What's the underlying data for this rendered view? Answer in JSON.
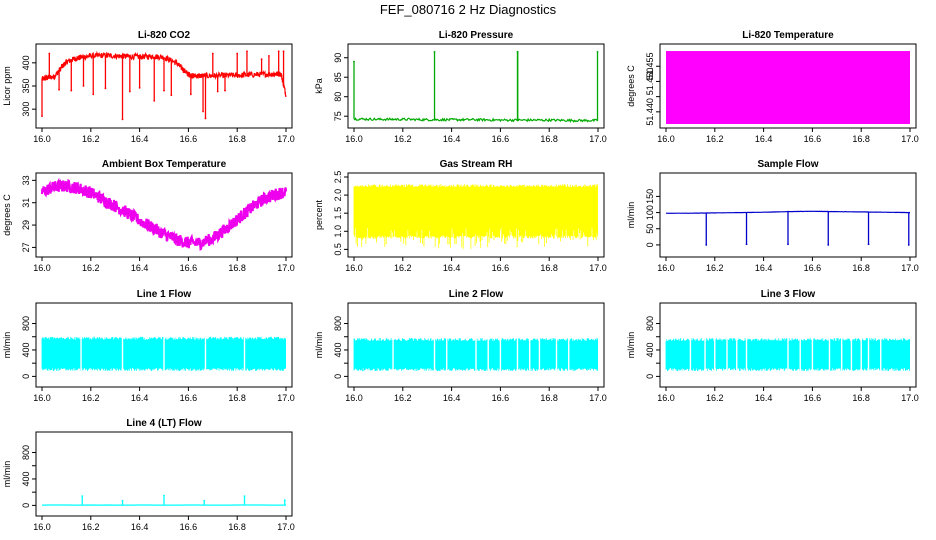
{
  "figure": {
    "title": "FEF_080716  2 Hz Diagnostics"
  },
  "chart_data": [
    {
      "type": "line",
      "title": "Li-820 CO2",
      "ylabel": "Licor ppm",
      "color": "#ff0000",
      "xlim": [
        16.0,
        17.0
      ],
      "ylim": [
        268,
        432
      ],
      "xticks": [
        16.0,
        16.2,
        16.4,
        16.6,
        16.8,
        17.0
      ],
      "xtick_labels": [
        "16.0",
        "16.2",
        "16.4",
        "16.6",
        "16.8",
        "17.0"
      ],
      "yticks": [
        300,
        350,
        400
      ],
      "ytick_labels": [
        "300",
        "350",
        "400"
      ],
      "series": [
        {
          "x": [
            16.0,
            16.02,
            16.05,
            16.08,
            16.1,
            16.13,
            16.16,
            16.2,
            16.25,
            16.3,
            16.35,
            16.4,
            16.45,
            16.5,
            16.55,
            16.58,
            16.6,
            16.62,
            16.65,
            16.7,
            16.75,
            16.8,
            16.85,
            16.9,
            16.95,
            16.98,
            17.0
          ],
          "y": [
            365,
            368,
            370,
            390,
            402,
            408,
            412,
            415,
            416,
            415,
            414,
            413,
            414,
            412,
            400,
            385,
            375,
            372,
            372,
            372,
            373,
            373,
            374,
            375,
            376,
            376,
            330
          ]
        }
      ],
      "spikes": [
        {
          "x": 16.0,
          "y": 285
        },
        {
          "x": 16.03,
          "y": 420
        },
        {
          "x": 16.07,
          "y": 342
        },
        {
          "x": 16.12,
          "y": 340
        },
        {
          "x": 16.17,
          "y": 350
        },
        {
          "x": 16.21,
          "y": 332
        },
        {
          "x": 16.26,
          "y": 345
        },
        {
          "x": 16.33,
          "y": 278
        },
        {
          "x": 16.36,
          "y": 338
        },
        {
          "x": 16.4,
          "y": 346
        },
        {
          "x": 16.46,
          "y": 318
        },
        {
          "x": 16.5,
          "y": 340
        },
        {
          "x": 16.53,
          "y": 330
        },
        {
          "x": 16.61,
          "y": 332
        },
        {
          "x": 16.66,
          "y": 295
        },
        {
          "x": 16.67,
          "y": 280
        },
        {
          "x": 16.7,
          "y": 420
        },
        {
          "x": 16.72,
          "y": 338
        },
        {
          "x": 16.75,
          "y": 340
        },
        {
          "x": 16.8,
          "y": 420
        },
        {
          "x": 16.84,
          "y": 425
        },
        {
          "x": 16.9,
          "y": 408
        },
        {
          "x": 16.93,
          "y": 415
        },
        {
          "x": 16.97,
          "y": 425
        },
        {
          "x": 16.99,
          "y": 425
        }
      ]
    },
    {
      "type": "line",
      "title": "Li-820 Pressure",
      "ylabel": "kPa",
      "color": "#00aa00",
      "xlim": [
        16.0,
        17.0
      ],
      "ylim": [
        73,
        92.5
      ],
      "xticks": [
        16.0,
        16.2,
        16.4,
        16.6,
        16.8,
        17.0
      ],
      "xtick_labels": [
        "16.0",
        "16.2",
        "16.4",
        "16.6",
        "16.8",
        "17.0"
      ],
      "yticks": [
        75,
        80,
        85,
        90
      ],
      "ytick_labels": [
        "75",
        "80",
        "85",
        "90"
      ],
      "series": [
        {
          "x": [
            16.0,
            16.1,
            16.2,
            16.3,
            16.4,
            16.5,
            16.6,
            16.7,
            16.8,
            16.9,
            17.0
          ],
          "y": [
            74.3,
            74.2,
            74.2,
            74.1,
            74.1,
            74.1,
            74.0,
            74.0,
            74.0,
            73.9,
            73.9
          ]
        }
      ],
      "spikes": [
        {
          "x": 16.0,
          "y": 89
        },
        {
          "x": 16.33,
          "y": 91.5
        },
        {
          "x": 16.67,
          "y": 91.5
        },
        {
          "x": 16.671,
          "y": 91.5
        },
        {
          "x": 16.998,
          "y": 91.5
        }
      ]
    },
    {
      "type": "area",
      "title": "Li-820 Temperature",
      "ylabel": "degrees C",
      "color": "#ff00ff",
      "xlim": [
        16.0,
        17.0
      ],
      "ylim": [
        51.436,
        51.461
      ],
      "xticks": [
        16.0,
        16.2,
        16.4,
        16.6,
        16.8,
        17.0
      ],
      "xtick_labels": [
        "16.0",
        "16.2",
        "16.4",
        "16.6",
        "16.8",
        "17.0"
      ],
      "yticks": [
        51.44,
        51.445,
        51.45,
        51.455
      ],
      "ytick_labels": [
        "51.440",
        "",
        "51.450",
        "51.455"
      ],
      "band": {
        "x": [
          16.0,
          17.0
        ],
        "ymin": 51.436,
        "ymax": 51.46
      }
    },
    {
      "type": "line",
      "title": "Ambient Box Temperature",
      "ylabel": "degrees C",
      "color": "#ee00ee",
      "xlim": [
        16.0,
        17.0
      ],
      "ylim": [
        26.5,
        33.3
      ],
      "xticks": [
        16.0,
        16.2,
        16.4,
        16.6,
        16.8,
        17.0
      ],
      "xtick_labels": [
        "16.0",
        "16.2",
        "16.4",
        "16.6",
        "16.8",
        "17.0"
      ],
      "yticks": [
        27,
        29,
        31,
        33
      ],
      "ytick_labels": [
        "27",
        "29",
        "31",
        "33"
      ],
      "noise": 0.55,
      "series": [
        {
          "x": [
            16.0,
            16.05,
            16.1,
            16.15,
            16.2,
            16.25,
            16.3,
            16.35,
            16.4,
            16.45,
            16.5,
            16.55,
            16.6,
            16.65,
            16.7,
            16.75,
            16.8,
            16.85,
            16.9,
            16.95,
            17.0
          ],
          "y": [
            32.0,
            32.4,
            32.5,
            32.3,
            31.9,
            31.3,
            30.7,
            30.1,
            29.4,
            28.8,
            28.2,
            27.7,
            27.4,
            27.4,
            27.8,
            28.6,
            29.5,
            30.4,
            31.2,
            31.7,
            32.0
          ]
        }
      ]
    },
    {
      "type": "line",
      "title": "Gas Stream RH",
      "ylabel": "percent",
      "color": "#ffff00",
      "xlim": [
        16.0,
        17.0
      ],
      "ylim": [
        0.4,
        2.5
      ],
      "xticks": [
        16.0,
        16.2,
        16.4,
        16.6,
        16.8,
        17.0
      ],
      "xtick_labels": [
        "16.0",
        "16.2",
        "16.4",
        "16.6",
        "16.8",
        "17.0"
      ],
      "yticks": [
        0.5,
        1.0,
        1.5,
        2.0,
        2.5
      ],
      "ytick_labels": [
        "0.5",
        "1.0",
        "1.5",
        "2.0",
        "2.5"
      ],
      "band": {
        "x": [
          16.0,
          17.0
        ],
        "ymin": 0.8,
        "ymax": 2.3
      },
      "spike_range": [
        0.5,
        2.4
      ]
    },
    {
      "type": "line",
      "title": "Sample Flow",
      "ylabel": "ml/min",
      "color": "#0000cc",
      "xlim": [
        16.0,
        17.0
      ],
      "ylim": [
        -25,
        210
      ],
      "xticks": [
        16.0,
        16.2,
        16.4,
        16.6,
        16.8,
        17.0
      ],
      "xtick_labels": [
        "16.0",
        "16.2",
        "16.4",
        "16.6",
        "16.8",
        "17.0"
      ],
      "yticks": [
        0,
        50,
        100,
        150
      ],
      "ytick_labels": [
        "0",
        "50",
        "100",
        "150"
      ],
      "series": [
        {
          "x": [
            16.0,
            16.1,
            16.2,
            16.3,
            16.4,
            16.5,
            16.6,
            16.7,
            16.8,
            16.9,
            17.0
          ],
          "y": [
            98,
            98,
            99,
            100,
            101,
            103,
            104,
            103,
            102,
            101,
            100
          ]
        }
      ],
      "spikes": [
        {
          "x": 16.165,
          "y": 0
        },
        {
          "x": 16.33,
          "y": 2
        },
        {
          "x": 16.5,
          "y": 2
        },
        {
          "x": 16.665,
          "y": 0
        },
        {
          "x": 16.83,
          "y": 2
        },
        {
          "x": 16.995,
          "y": 0
        }
      ]
    },
    {
      "type": "line",
      "title": "Line 1 Flow",
      "ylabel": "ml/min",
      "color": "#00ffff",
      "xlim": [
        16.0,
        17.0
      ],
      "ylim": [
        -100,
        1050
      ],
      "xticks": [
        16.0,
        16.2,
        16.4,
        16.6,
        16.8,
        17.0
      ],
      "xtick_labels": [
        "16.0",
        "16.2",
        "16.4",
        "16.6",
        "16.8",
        "17.0"
      ],
      "yticks": [
        0,
        200,
        400,
        600,
        800
      ],
      "ytick_labels": [
        "0",
        "",
        "400",
        "",
        "800"
      ],
      "band": {
        "x": [
          16.0,
          17.0
        ],
        "ymin": 80,
        "ymax": 600
      },
      "gaps": [
        16.16,
        16.33,
        16.5,
        16.67,
        16.83
      ]
    },
    {
      "type": "line",
      "title": "Line 2 Flow",
      "ylabel": "ml/min",
      "color": "#00ffff",
      "xlim": [
        16.0,
        17.0
      ],
      "ylim": [
        -100,
        1050
      ],
      "xticks": [
        16.0,
        16.2,
        16.4,
        16.6,
        16.8,
        17.0
      ],
      "xtick_labels": [
        "16.0",
        "16.2",
        "16.4",
        "16.6",
        "16.8",
        "17.0"
      ],
      "yticks": [
        0,
        200,
        400,
        600,
        800
      ],
      "ytick_labels": [
        "0",
        "",
        "400",
        "",
        "800"
      ],
      "band": {
        "x": [
          16.0,
          17.0
        ],
        "ymin": 80,
        "ymax": 580
      },
      "gaps": [
        16.16,
        16.33,
        16.38,
        16.5,
        16.55,
        16.6,
        16.67,
        16.72,
        16.76,
        16.83,
        16.88
      ]
    },
    {
      "type": "line",
      "title": "Line 3 Flow",
      "ylabel": "ml/min",
      "color": "#00ffff",
      "xlim": [
        16.0,
        17.0
      ],
      "ylim": [
        -100,
        1050
      ],
      "xticks": [
        16.0,
        16.2,
        16.4,
        16.6,
        16.8,
        17.0
      ],
      "xtick_labels": [
        "16.0",
        "16.2",
        "16.4",
        "16.6",
        "16.8",
        "17.0"
      ],
      "yticks": [
        0,
        200,
        400,
        600,
        800
      ],
      "ytick_labels": [
        "0",
        "",
        "400",
        "",
        "800"
      ],
      "band": {
        "x": [
          16.0,
          17.0
        ],
        "ymin": 80,
        "ymax": 580
      },
      "gaps": [
        16.1,
        16.16,
        16.2,
        16.25,
        16.29,
        16.33,
        16.5,
        16.55,
        16.6,
        16.67,
        16.72,
        16.76,
        16.8,
        16.83,
        16.88
      ]
    },
    {
      "type": "line",
      "title": "Line 4 (LT) Flow",
      "ylabel": "ml/min",
      "color": "#00ffff",
      "xlim": [
        16.0,
        17.0
      ],
      "ylim": [
        -100,
        1050
      ],
      "xticks": [
        16.0,
        16.2,
        16.4,
        16.6,
        16.8,
        17.0
      ],
      "xtick_labels": [
        "16.0",
        "16.2",
        "16.4",
        "16.6",
        "16.8",
        "17.0"
      ],
      "yticks": [
        0,
        200,
        400,
        600,
        800
      ],
      "ytick_labels": [
        "0",
        "",
        "400",
        "",
        "800"
      ],
      "series": [
        {
          "x": [
            16.0,
            17.0
          ],
          "y": [
            5,
            5
          ]
        }
      ],
      "spikes": [
        {
          "x": 16.165,
          "y": 140
        },
        {
          "x": 16.33,
          "y": 70
        },
        {
          "x": 16.5,
          "y": 150
        },
        {
          "x": 16.665,
          "y": 70
        },
        {
          "x": 16.83,
          "y": 140
        },
        {
          "x": 16.995,
          "y": 80
        }
      ]
    }
  ]
}
